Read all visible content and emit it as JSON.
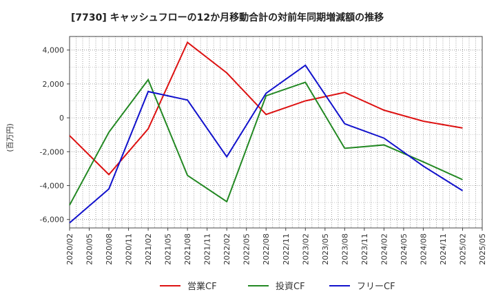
{
  "chart_data": {
    "type": "line",
    "title": "[7730]  キャッシュフローの12か月移動合計の対前年同期増減額の推移",
    "ylabel": "(百万円)",
    "xlabel": "",
    "x_ticks": [
      "2020/02",
      "2020/05",
      "2020/08",
      "2020/11",
      "2021/02",
      "2021/05",
      "2021/08",
      "2021/11",
      "2022/02",
      "2022/05",
      "2022/08",
      "2022/11",
      "2023/02",
      "2023/05",
      "2023/08",
      "2023/11",
      "2024/02",
      "2024/05",
      "2024/08",
      "2024/11",
      "2025/02",
      "2025/05"
    ],
    "y_ticks": [
      -6000,
      -4000,
      -2000,
      0,
      2000,
      4000
    ],
    "ylim": [
      -6500,
      4800
    ],
    "grid": true,
    "legend_position": "bottom-center",
    "series": [
      {
        "name": "営業CF",
        "color": "#dd1111",
        "points": [
          {
            "x": "2020/02",
            "y": -1050
          },
          {
            "x": "2020/08",
            "y": -3350
          },
          {
            "x": "2021/02",
            "y": -650
          },
          {
            "x": "2021/08",
            "y": 4450
          },
          {
            "x": "2022/02",
            "y": 2650
          },
          {
            "x": "2022/08",
            "y": 200
          },
          {
            "x": "2023/02",
            "y": 1000
          },
          {
            "x": "2023/08",
            "y": 1500
          },
          {
            "x": "2024/02",
            "y": 450
          },
          {
            "x": "2024/08",
            "y": -200
          },
          {
            "x": "2025/02",
            "y": -600
          }
        ]
      },
      {
        "name": "投資CF",
        "color": "#228822",
        "points": [
          {
            "x": "2020/02",
            "y": -5150
          },
          {
            "x": "2020/08",
            "y": -850
          },
          {
            "x": "2021/02",
            "y": 2250
          },
          {
            "x": "2021/08",
            "y": -3400
          },
          {
            "x": "2022/02",
            "y": -4950
          },
          {
            "x": "2022/08",
            "y": 1300
          },
          {
            "x": "2023/02",
            "y": 2100
          },
          {
            "x": "2023/08",
            "y": -1800
          },
          {
            "x": "2024/02",
            "y": -1600
          },
          {
            "x": "2024/08",
            "y": -2600
          },
          {
            "x": "2025/02",
            "y": -3650
          }
        ]
      },
      {
        "name": "フリーCF",
        "color": "#1111cc",
        "points": [
          {
            "x": "2020/02",
            "y": -6200
          },
          {
            "x": "2020/08",
            "y": -4200
          },
          {
            "x": "2021/02",
            "y": 1550
          },
          {
            "x": "2021/08",
            "y": 1050
          },
          {
            "x": "2022/02",
            "y": -2300
          },
          {
            "x": "2022/08",
            "y": 1450
          },
          {
            "x": "2023/02",
            "y": 3100
          },
          {
            "x": "2023/08",
            "y": -350
          },
          {
            "x": "2024/02",
            "y": -1200
          },
          {
            "x": "2024/08",
            "y": -2850
          },
          {
            "x": "2025/02",
            "y": -4300
          }
        ]
      }
    ]
  }
}
